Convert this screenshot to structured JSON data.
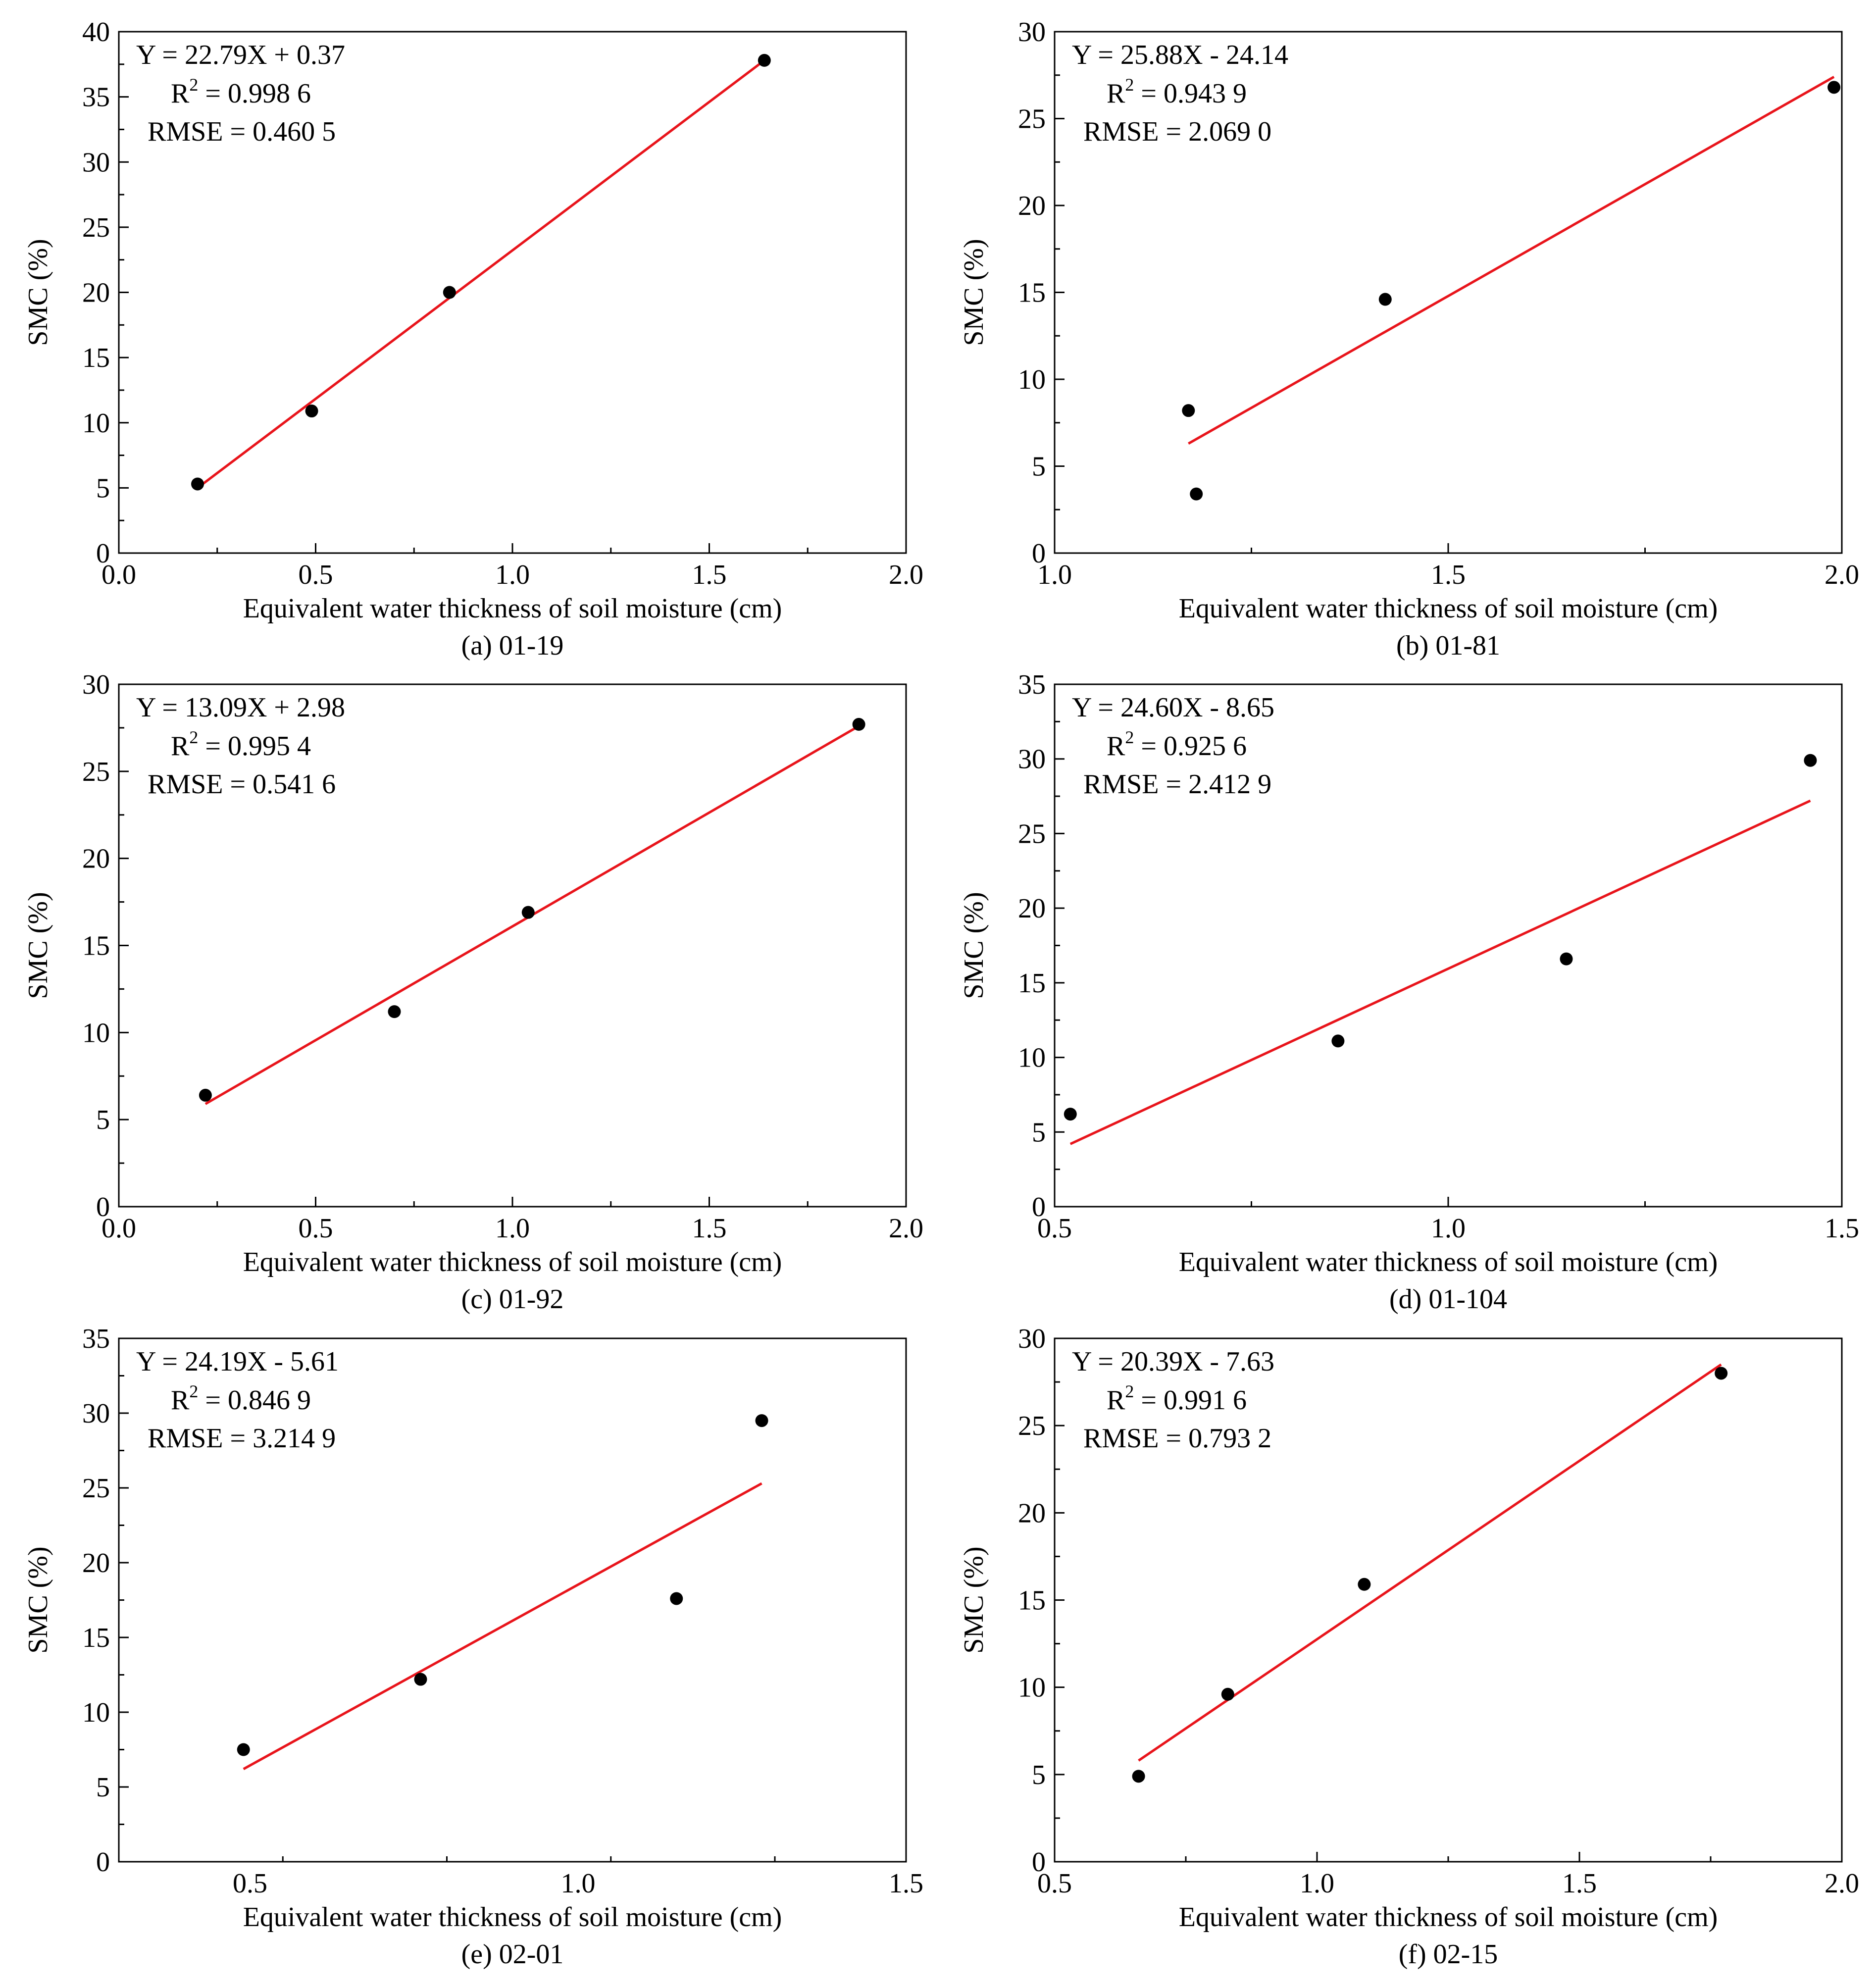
{
  "figure": {
    "panels": [
      {
        "chart_data": {
          "type": "scatter",
          "caption": "(a) 01-19",
          "xlabel": "Equivalent water thickness of soil moisture (cm)",
          "ylabel": "SMC (%)",
          "xlim": [
            0.0,
            2.0
          ],
          "ylim": [
            0,
            40
          ],
          "xticks": [
            "0.0",
            "0.5",
            "1.0",
            "1.5",
            "2.0"
          ],
          "yticks": [
            "0",
            "5",
            "10",
            "15",
            "20",
            "25",
            "30",
            "35",
            "40"
          ],
          "points": [
            [
              0.2,
              5.3
            ],
            [
              0.49,
              10.9
            ],
            [
              0.84,
              20.0
            ],
            [
              1.64,
              37.8
            ]
          ],
          "fit_line": [
            [
              0.2,
              5.0
            ],
            [
              1.64,
              37.8
            ]
          ],
          "equation": "Y = 22.79X + 0.37",
          "r2_label": "R",
          "r2_sup": "2",
          "r2_value": " = 0.998 6",
          "rmse": "RMSE = 0.460 5",
          "point_color": "#000000",
          "line_color": "#e8141b"
        }
      },
      {
        "chart_data": {
          "type": "scatter",
          "caption": "(b) 01-81",
          "xlabel": "Equivalent water thickness of soil moisture (cm)",
          "ylabel": "SMC (%)",
          "xlim": [
            1.0,
            2.0
          ],
          "ylim": [
            0,
            30
          ],
          "xticks": [
            "1.0",
            "1.5",
            "2.0"
          ],
          "yticks": [
            "0",
            "5",
            "10",
            "15",
            "20",
            "25",
            "30"
          ],
          "points": [
            [
              1.17,
              8.2
            ],
            [
              1.18,
              3.4
            ],
            [
              1.42,
              14.6
            ],
            [
              1.99,
              26.8
            ]
          ],
          "fit_line": [
            [
              1.17,
              6.3
            ],
            [
              1.99,
              27.4
            ]
          ],
          "equation": "Y = 25.88X - 24.14",
          "r2_label": "R",
          "r2_sup": "2",
          "r2_value": " = 0.943 9",
          "rmse": "RMSE = 2.069 0",
          "point_color": "#000000",
          "line_color": "#e8141b"
        }
      },
      {
        "chart_data": {
          "type": "scatter",
          "caption": "(c) 01-92",
          "xlabel": "Equivalent water thickness of soil moisture (cm)",
          "ylabel": "SMC (%)",
          "xlim": [
            0.0,
            2.0
          ],
          "ylim": [
            0,
            30
          ],
          "xticks": [
            "0.0",
            "0.5",
            "1.0",
            "1.5",
            "2.0"
          ],
          "yticks": [
            "0",
            "5",
            "10",
            "15",
            "20",
            "25",
            "30"
          ],
          "points": [
            [
              0.22,
              6.4
            ],
            [
              0.7,
              11.2
            ],
            [
              1.04,
              16.9
            ],
            [
              1.88,
              27.7
            ]
          ],
          "fit_line": [
            [
              0.22,
              5.9
            ],
            [
              1.88,
              27.6
            ]
          ],
          "equation": "Y = 13.09X + 2.98",
          "r2_label": "R",
          "r2_sup": "2",
          "r2_value": " = 0.995 4",
          "rmse": "RMSE = 0.541 6",
          "point_color": "#000000",
          "line_color": "#e8141b"
        }
      },
      {
        "chart_data": {
          "type": "scatter",
          "caption": "(d) 01-104",
          "xlabel": "Equivalent water thickness of soil moisture (cm)",
          "ylabel": "SMC (%)",
          "xlim": [
            0.5,
            1.5
          ],
          "ylim": [
            0,
            35
          ],
          "xticks": [
            "0.5",
            "1.0",
            "1.5"
          ],
          "yticks": [
            "0",
            "5",
            "10",
            "15",
            "20",
            "25",
            "30",
            "35"
          ],
          "points": [
            [
              0.52,
              6.2
            ],
            [
              0.86,
              11.1
            ],
            [
              1.15,
              16.6
            ],
            [
              1.46,
              29.9
            ]
          ],
          "fit_line": [
            [
              0.52,
              4.2
            ],
            [
              1.46,
              27.2
            ]
          ],
          "equation": "Y = 24.60X - 8.65",
          "r2_label": "R",
          "r2_sup": "2",
          "r2_value": " = 0.925 6",
          "rmse": "RMSE = 2.412 9",
          "point_color": "#000000",
          "line_color": "#e8141b"
        }
      },
      {
        "chart_data": {
          "type": "scatter",
          "caption": "(e) 02-01",
          "xlabel": "Equivalent water thickness of soil moisture (cm)",
          "ylabel": "SMC (%)",
          "xlim": [
            0.3,
            1.5
          ],
          "ylim": [
            0,
            35
          ],
          "xticks": [
            "0.5",
            "1.0",
            "1.5"
          ],
          "yticks": [
            "0",
            "5",
            "10",
            "15",
            "20",
            "25",
            "30",
            "35"
          ],
          "points": [
            [
              0.49,
              7.5
            ],
            [
              0.76,
              12.2
            ],
            [
              1.15,
              17.6
            ],
            [
              1.28,
              29.5
            ]
          ],
          "fit_line": [
            [
              0.49,
              6.2
            ],
            [
              1.28,
              25.3
            ]
          ],
          "equation": "Y = 24.19X - 5.61",
          "r2_label": "R",
          "r2_sup": "2",
          "r2_value": " = 0.846 9",
          "rmse": "RMSE = 3.214 9",
          "point_color": "#000000",
          "line_color": "#e8141b"
        }
      },
      {
        "chart_data": {
          "type": "scatter",
          "caption": "(f) 02-15",
          "xlabel": "Equivalent water thickness of soil moisture (cm)",
          "ylabel": "SMC (%)",
          "xlim": [
            0.5,
            2.0
          ],
          "ylim": [
            0,
            30
          ],
          "xticks": [
            "0.5",
            "1.0",
            "1.5",
            "2.0"
          ],
          "yticks": [
            "0",
            "5",
            "10",
            "15",
            "20",
            "25",
            "30"
          ],
          "points": [
            [
              0.66,
              4.9
            ],
            [
              0.83,
              9.6
            ],
            [
              1.09,
              15.9
            ],
            [
              1.77,
              28.0
            ]
          ],
          "fit_line": [
            [
              0.66,
              5.8
            ],
            [
              1.77,
              28.5
            ]
          ],
          "equation": "Y = 20.39X - 7.63",
          "r2_label": "R",
          "r2_sup": "2",
          "r2_value": " = 0.991 6",
          "rmse": "RMSE = 0.793 2",
          "point_color": "#000000",
          "line_color": "#e8141b"
        }
      }
    ]
  }
}
